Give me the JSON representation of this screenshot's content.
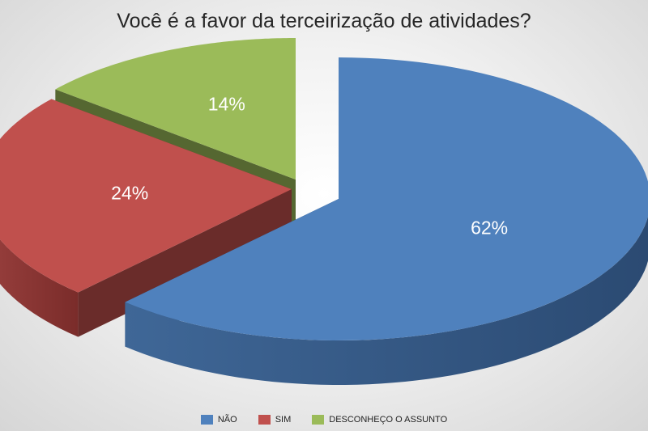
{
  "chart_data": {
    "type": "pie",
    "title": "Você é a favor da terceirização de atividades?",
    "style": "3d-exploded",
    "legend_position": "bottom",
    "slices": [
      {
        "label": "NÃO",
        "value": 62,
        "value_label": "62%",
        "color": "#4f81bd",
        "side_color": "#2b4a72"
      },
      {
        "label": "SIM",
        "value": 24,
        "value_label": "24%",
        "color": "#c0504d",
        "side_color": "#7a2c2a"
      },
      {
        "label": "DESCONHEÇO O ASSUNTO",
        "value": 14,
        "value_label": "14%",
        "color": "#9bbb59",
        "side_color": "#4a5a25"
      }
    ]
  }
}
